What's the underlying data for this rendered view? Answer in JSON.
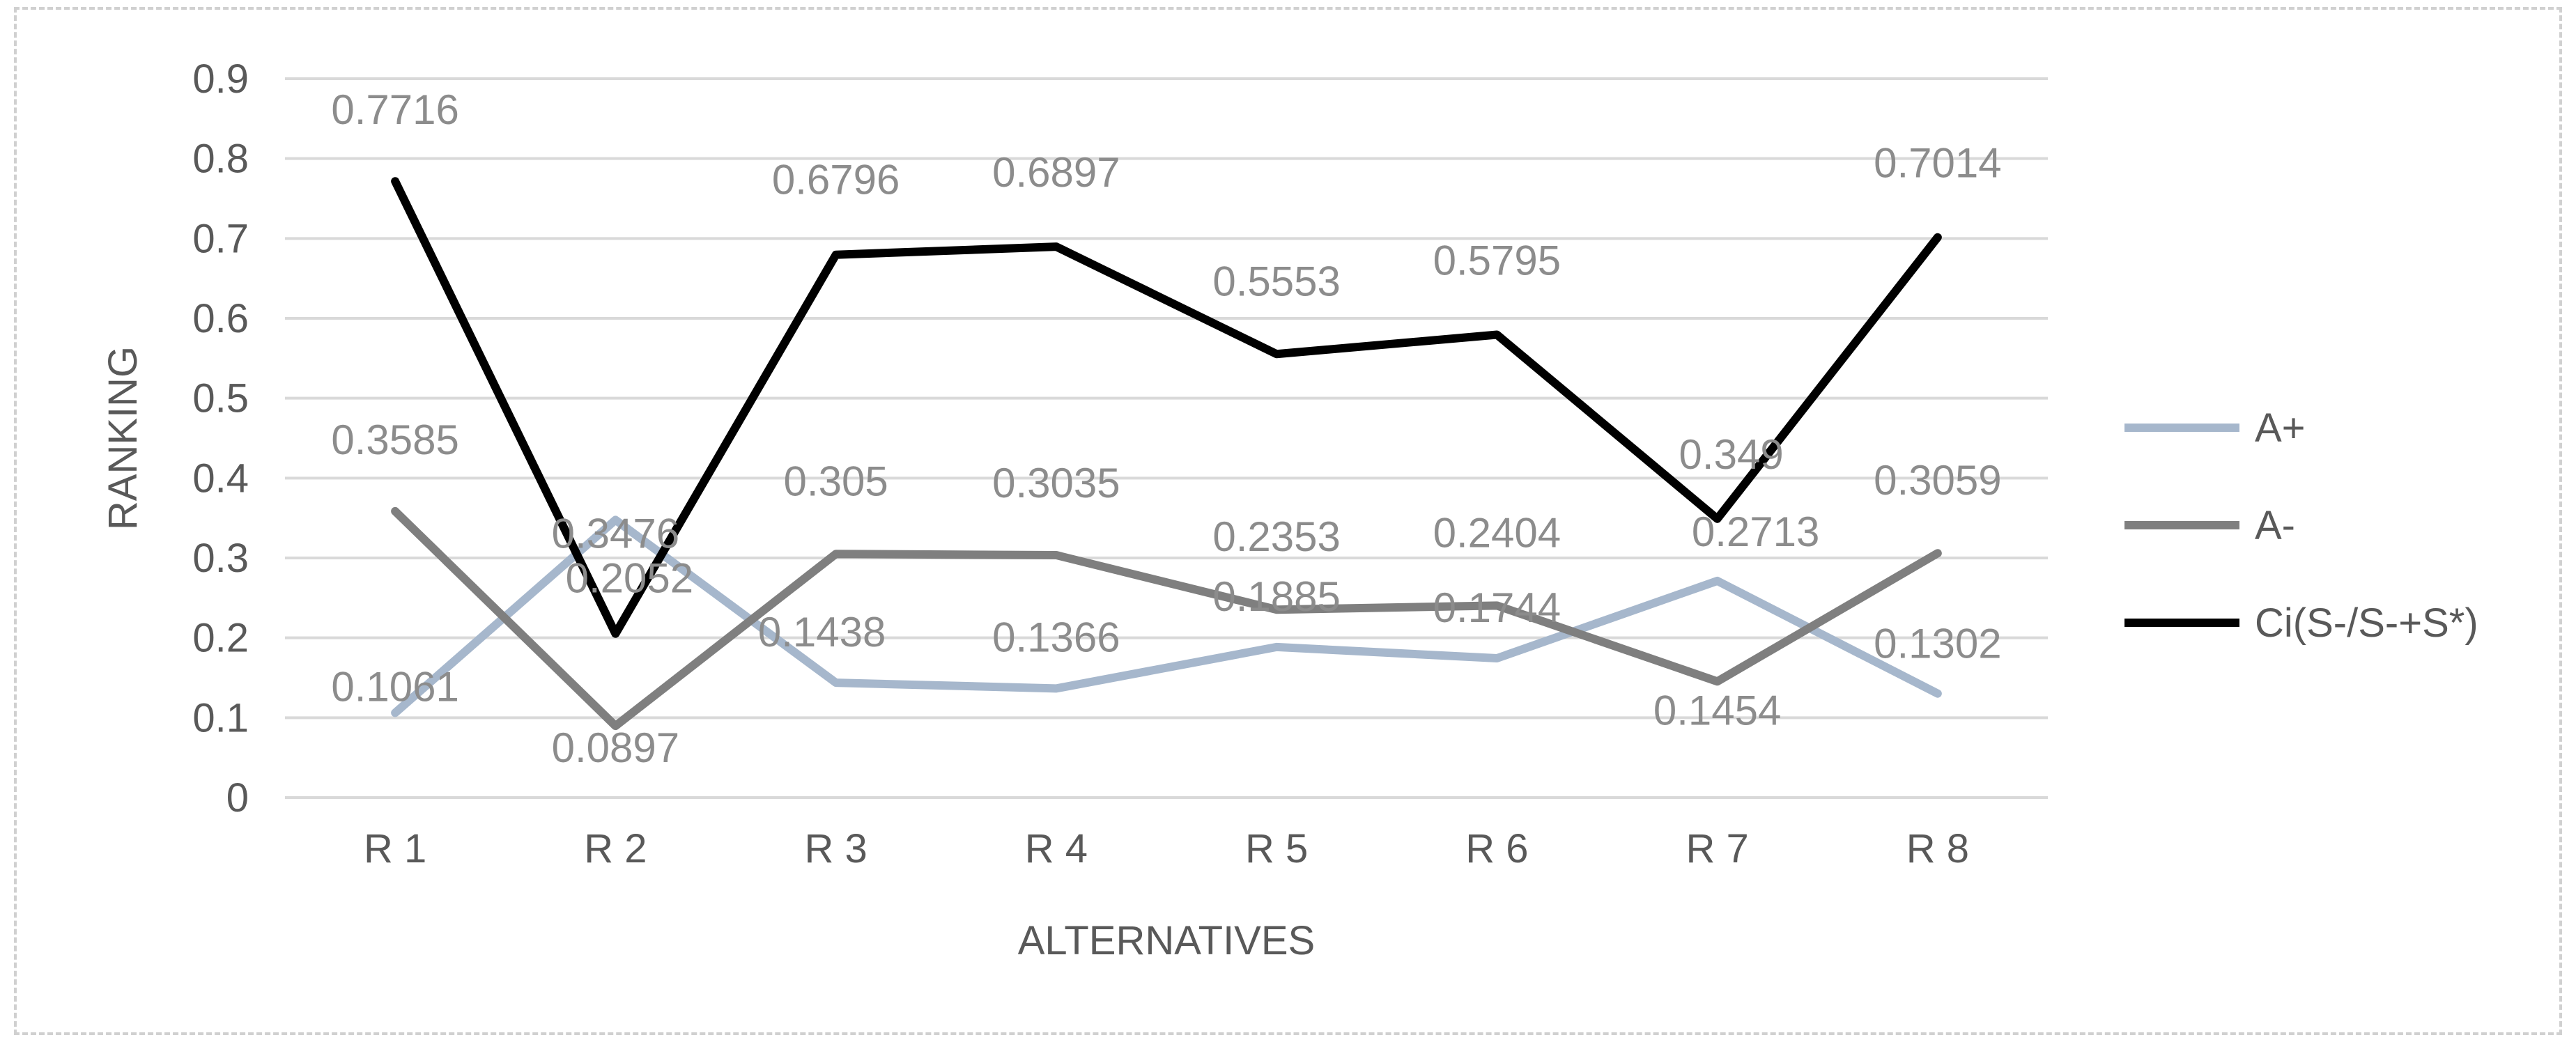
{
  "chart_data": {
    "type": "line",
    "categories": [
      "R 1",
      "R 2",
      "R 3",
      "R 4",
      "R 5",
      "R 6",
      "R 7",
      "R 8"
    ],
    "series": [
      {
        "name": "A+",
        "color": "#a6b7cc",
        "values": [
          0.1061,
          0.3476,
          0.1438,
          0.1366,
          0.1885,
          0.1744,
          0.2713,
          0.1302
        ],
        "labels": [
          "0.1061",
          "0.3476",
          "0.1438",
          "0.1366",
          "0.1885",
          "0.1744",
          "0.2713",
          "0.1302"
        ]
      },
      {
        "name": "A-",
        "color": "#7f7f7f",
        "values": [
          0.3585,
          0.0897,
          0.305,
          0.3035,
          0.2353,
          0.2404,
          0.1454,
          0.3059
        ],
        "labels": [
          "0.3585",
          "0.0897",
          "0.305",
          "0.3035",
          "0.2353",
          "0.2404",
          "0.1454",
          "0.3059"
        ]
      },
      {
        "name": "Ci(S-/S-+S*)",
        "color": "#000000",
        "values": [
          0.7716,
          0.2052,
          0.6796,
          0.6897,
          0.5553,
          0.5795,
          0.349,
          0.7014
        ],
        "labels": [
          "0.7716",
          "0.2052",
          "0.6796",
          "0.6897",
          "0.5553",
          "0.5795",
          "0.349",
          "0.7014"
        ]
      }
    ],
    "xlabel": "ALTERNATIVES",
    "ylabel": "RANKING",
    "ylim": [
      0,
      0.9
    ],
    "yticks": [
      "0",
      "0.1",
      "0.2",
      "0.3",
      "0.4",
      "0.5",
      "0.6",
      "0.7",
      "0.8",
      "0.9"
    ],
    "grid": true,
    "legend_position": "right"
  }
}
